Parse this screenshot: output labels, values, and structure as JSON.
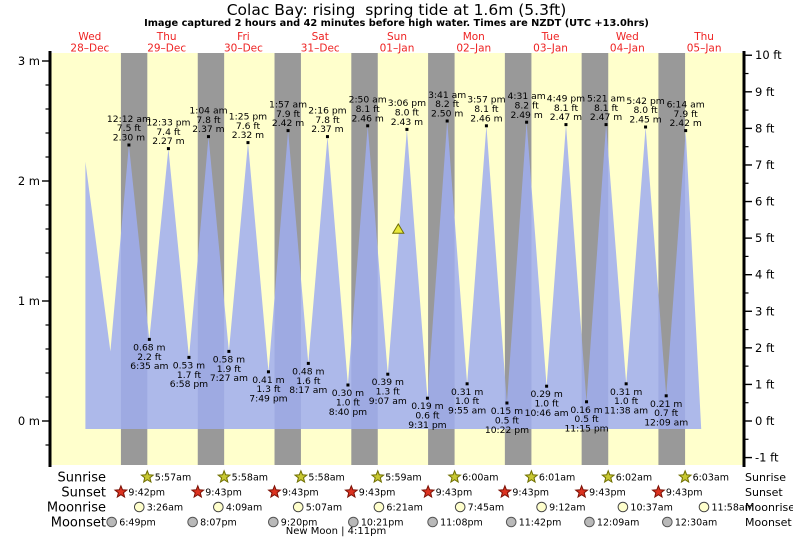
{
  "title": "Colac Bay: rising  spring tide at 1.6m (5.3ft)",
  "subtitle": "Image captured 2 hours and 42 minutes before high water. Times are NZDT (UTC +13.0hrs)",
  "row_labels": {
    "sunrise": "Sunrise",
    "sunset": "Sunset",
    "moonrise": "Moonrise",
    "moonset": "Moonset"
  },
  "colors": {
    "plot_bg": "#ffffcc",
    "night_band": "#999999",
    "tide_fill": "#9fadee",
    "day_label": "#ee2222",
    "axis": "#000000",
    "sunrise_star": "#c8c832",
    "sunrise_star_stroke": "#6e6e00",
    "sunset_star": "#dc3220",
    "sunset_star_stroke": "#7a1004",
    "moonrise_circle": "#ffffcc",
    "moonrise_circle_stroke": "#444444",
    "moonset_circle": "#b9b9b9",
    "moonset_circle_stroke": "#555555",
    "marker_fill": "#e9e93c",
    "marker_stroke": "#6f6f00"
  },
  "chart_data": {
    "type": "area",
    "title": "Colac Bay: rising  spring tide at 1.6m (5.3ft)",
    "days": [
      {
        "name": "Wed",
        "date": "28–Dec"
      },
      {
        "name": "Thu",
        "date": "29–Dec"
      },
      {
        "name": "Fri",
        "date": "30–Dec"
      },
      {
        "name": "Sat",
        "date": "31–Dec"
      },
      {
        "name": "Sun",
        "date": "01–Jan"
      },
      {
        "name": "Mon",
        "date": "02–Jan"
      },
      {
        "name": "Tue",
        "date": "03–Jan"
      },
      {
        "name": "Wed",
        "date": "04–Jan"
      },
      {
        "name": "Thu",
        "date": "05–Jan"
      }
    ],
    "left_axis": {
      "unit": "m",
      "major_values": [
        0,
        1,
        2,
        3
      ],
      "minor_step": 0.2,
      "minor_range": [
        -0.2,
        3.0
      ],
      "range_m": [
        -0.37,
        3.07
      ]
    },
    "right_axis": {
      "unit": "ft",
      "major_values": [
        -1,
        0,
        1,
        2,
        3,
        4,
        5,
        6,
        7,
        8,
        9,
        10
      ],
      "minor_step": 0.5,
      "minor_range": [
        -0.5,
        9.5
      ]
    },
    "high_tides": [
      {
        "day": 1,
        "time": "12:12 am",
        "ft": "7.5 ft",
        "m": "2.30 m"
      },
      {
        "day": 1,
        "time": "12:33 pm",
        "ft": "7.4 ft",
        "m": "2.27 m"
      },
      {
        "day": 2,
        "time": "1:04 am",
        "ft": "7.8 ft",
        "m": "2.37 m"
      },
      {
        "day": 2,
        "time": "1:25 pm",
        "ft": "7.6 ft",
        "m": "2.32 m"
      },
      {
        "day": 3,
        "time": "1:57 am",
        "ft": "7.9 ft",
        "m": "2.42 m"
      },
      {
        "day": 3,
        "time": "2:16 pm",
        "ft": "7.8 ft",
        "m": "2.37 m"
      },
      {
        "day": 4,
        "time": "2:50 am",
        "ft": "8.1 ft",
        "m": "2.46 m"
      },
      {
        "day": 4,
        "time": "3:06 pm",
        "ft": "8.0 ft",
        "m": "2.43 m"
      },
      {
        "day": 5,
        "time": "3:41 am",
        "ft": "8.2 ft",
        "m": "2.50 m"
      },
      {
        "day": 5,
        "time": "3:57 pm",
        "ft": "8.1 ft",
        "m": "2.46 m"
      },
      {
        "day": 6,
        "time": "4:31 am",
        "ft": "8.2 ft",
        "m": "2.49 m"
      },
      {
        "day": 6,
        "time": "4:49 pm",
        "ft": "8.1 ft",
        "m": "2.47 m"
      },
      {
        "day": 7,
        "time": "5:21 am",
        "ft": "8.1 ft",
        "m": "2.47 m"
      },
      {
        "day": 7,
        "time": "5:42 pm",
        "ft": "8.0 ft",
        "m": "2.45 m"
      },
      {
        "day": 8,
        "time": "6:14 am",
        "ft": "7.9 ft",
        "m": "2.42 m"
      }
    ],
    "low_tides": [
      {
        "day": 1,
        "time": "6:35 am",
        "ft": "2.2 ft",
        "m": "0.68 m"
      },
      {
        "day": 1,
        "time": "6:58 pm",
        "ft": "1.7 ft",
        "m": "0.53 m"
      },
      {
        "day": 2,
        "time": "7:27 am",
        "ft": "1.9 ft",
        "m": "0.58 m"
      },
      {
        "day": 2,
        "time": "7:49 pm",
        "ft": "1.3 ft",
        "m": "0.41 m"
      },
      {
        "day": 3,
        "time": "8:17 am",
        "ft": "1.6 ft",
        "m": "0.48 m"
      },
      {
        "day": 3,
        "time": "8:40 pm",
        "ft": "1.0 ft",
        "m": "0.30 m"
      },
      {
        "day": 4,
        "time": "9:07 am",
        "ft": "1.3 ft",
        "m": "0.39 m"
      },
      {
        "day": 4,
        "time": "9:31 pm",
        "ft": "0.6 ft",
        "m": "0.19 m"
      },
      {
        "day": 5,
        "time": "9:55 am",
        "ft": "1.0 ft",
        "m": "0.31 m"
      },
      {
        "day": 5,
        "time": "10:22 pm",
        "ft": "0.5 ft",
        "m": "0.15 m"
      },
      {
        "day": 6,
        "time": "10:46 am",
        "ft": "1.0 ft",
        "m": "0.29 m"
      },
      {
        "day": 6,
        "time": "11:15 pm",
        "ft": "0.5 ft",
        "m": "0.16 m"
      },
      {
        "day": 7,
        "time": "11:38 am",
        "ft": "1.0 ft",
        "m": "0.31 m"
      },
      {
        "day": 8,
        "time": "12:09 am",
        "ft": "0.7 ft",
        "m": "0.21 m"
      }
    ],
    "curve_edges": {
      "start": {
        "day": 0,
        "hour": 10.6,
        "height_m": 2.16
      },
      "first_low": {
        "day": 0,
        "hour": 18.4,
        "height_m": 0.58
      },
      "end": {
        "day": 8,
        "hour": 11.1,
        "height_m": -0.0667
      }
    },
    "current_marker": {
      "day": 4,
      "hour": 12.4,
      "height_m": 1.6
    },
    "astro": {
      "sunrise": [
        {
          "day": 1,
          "time": "5:57am"
        },
        {
          "day": 2,
          "time": "5:58am"
        },
        {
          "day": 3,
          "time": "5:58am"
        },
        {
          "day": 4,
          "time": "5:59am"
        },
        {
          "day": 5,
          "time": "6:00am"
        },
        {
          "day": 6,
          "time": "6:01am"
        },
        {
          "day": 7,
          "time": "6:02am"
        },
        {
          "day": 8,
          "time": "6:03am"
        }
      ],
      "sunset": [
        {
          "day": 0,
          "time": "9:42pm"
        },
        {
          "day": 1,
          "time": "9:43pm"
        },
        {
          "day": 2,
          "time": "9:43pm"
        },
        {
          "day": 3,
          "time": "9:43pm"
        },
        {
          "day": 4,
          "time": "9:43pm"
        },
        {
          "day": 5,
          "time": "9:43pm"
        },
        {
          "day": 6,
          "time": "9:43pm"
        },
        {
          "day": 7,
          "time": "9:43pm"
        }
      ],
      "moonrise": [
        {
          "day": 1,
          "time": "3:26am"
        },
        {
          "day": 2,
          "time": "4:09am"
        },
        {
          "day": 3,
          "time": "5:07am"
        },
        {
          "day": 4,
          "time": "6:21am"
        },
        {
          "day": 5,
          "time": "7:45am"
        },
        {
          "day": 6,
          "time": "9:12am"
        },
        {
          "day": 7,
          "time": "10:37am"
        },
        {
          "day": 8,
          "time": "11:58am"
        }
      ],
      "moonset": [
        {
          "day": 0,
          "time": "6:49pm"
        },
        {
          "day": 1,
          "time": "8:07pm"
        },
        {
          "day": 2,
          "time": "9:20pm"
        },
        {
          "day": 3,
          "time": "10:21pm"
        },
        {
          "day": 4,
          "time": "11:08pm"
        },
        {
          "day": 5,
          "time": "11:42pm"
        },
        {
          "day": 7,
          "time": "12:09am"
        },
        {
          "day": 8,
          "time": "12:30am"
        }
      ]
    },
    "moon_phase": {
      "label": "New Moon",
      "time": "4:11pm"
    }
  }
}
